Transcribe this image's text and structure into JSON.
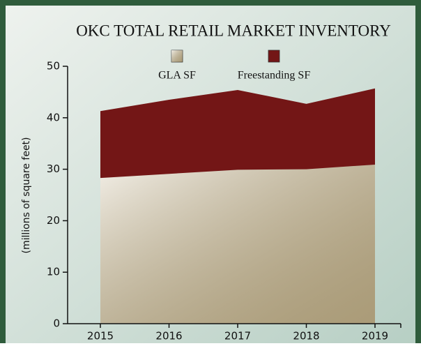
{
  "chart_data": {
    "type": "stacked_area",
    "title": "OKC TOTAL RETAIL MARKET INVENTORY",
    "y_label": "(millions of square feet)",
    "categories": [
      "2015",
      "2016",
      "2017",
      "2018",
      "2019"
    ],
    "series": [
      {
        "name": "GLA SF",
        "color": "#cdbf9f",
        "values": [
          28.3,
          29.1,
          29.9,
          30.0,
          30.9
        ]
      },
      {
        "name": "Freestanding SF",
        "color": "#731616",
        "values": [
          13.0,
          14.4,
          15.5,
          12.7,
          14.8
        ]
      }
    ],
    "ylim": [
      0,
      50
    ],
    "yticks": [
      0,
      10,
      20,
      30,
      40,
      50
    ]
  }
}
